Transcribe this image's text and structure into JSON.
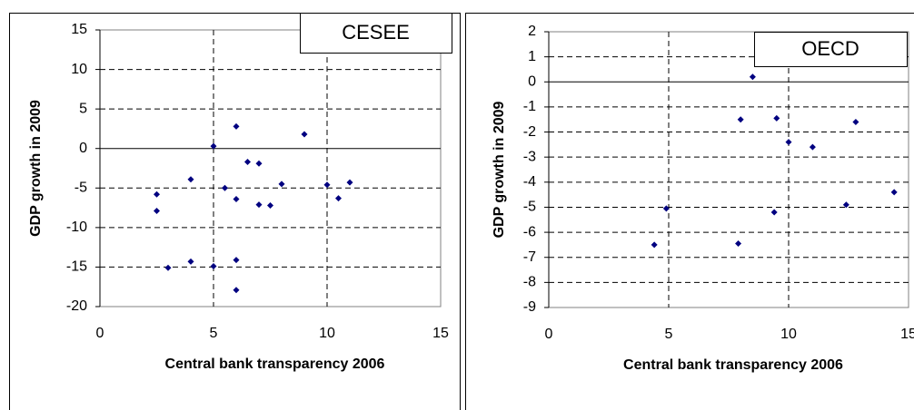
{
  "chart_data": [
    {
      "type": "scatter",
      "x_label": "Central bank transparency 2006",
      "y_label": "GDP growth in 2009",
      "xlim": [
        0,
        15
      ],
      "xticks": [
        0,
        5,
        10,
        15
      ],
      "ylim": [
        -20,
        15
      ],
      "yticks": [
        15,
        10,
        5,
        0,
        -5,
        -10,
        -15,
        -20
      ],
      "grid": true,
      "series": [
        {
          "name": "CESEE",
          "color": "#000080",
          "x": [
            6,
            5,
            9,
            6.5,
            7,
            4,
            5.5,
            6,
            8,
            10,
            11,
            10.5,
            7,
            7.5,
            2.5,
            2.5,
            4,
            3,
            5,
            6,
            6
          ],
          "values": [
            2.8,
            0.3,
            1.8,
            -1.7,
            -1.9,
            -3.9,
            -5,
            -6.4,
            -4.5,
            -4.6,
            -4.3,
            -6.3,
            -7.1,
            -7.2,
            -5.8,
            -7.9,
            -14.3,
            -15.1,
            -14.9,
            -14.1,
            -17.9
          ]
        }
      ]
    },
    {
      "type": "scatter",
      "x_label": "Central bank transparency 2006",
      "y_label": "GDP growth in 2009",
      "xlim": [
        0,
        15
      ],
      "xticks": [
        0,
        5,
        10,
        15
      ],
      "ylim": [
        -9,
        2
      ],
      "yticks": [
        2,
        1,
        0,
        -1,
        -2,
        -3,
        -4,
        -5,
        -6,
        -7,
        -8,
        -9
      ],
      "grid": true,
      "series": [
        {
          "name": "OECD",
          "color": "#000080",
          "x": [
            8.5,
            8,
            9.5,
            10,
            11,
            12.8,
            14.4,
            12.4,
            9.4,
            4.9,
            4.4,
            7.9
          ],
          "values": [
            0.2,
            -1.5,
            -1.45,
            -2.4,
            -2.6,
            -1.6,
            -4.4,
            -4.9,
            -5.2,
            -5.05,
            -6.5,
            -6.45
          ]
        }
      ]
    }
  ]
}
